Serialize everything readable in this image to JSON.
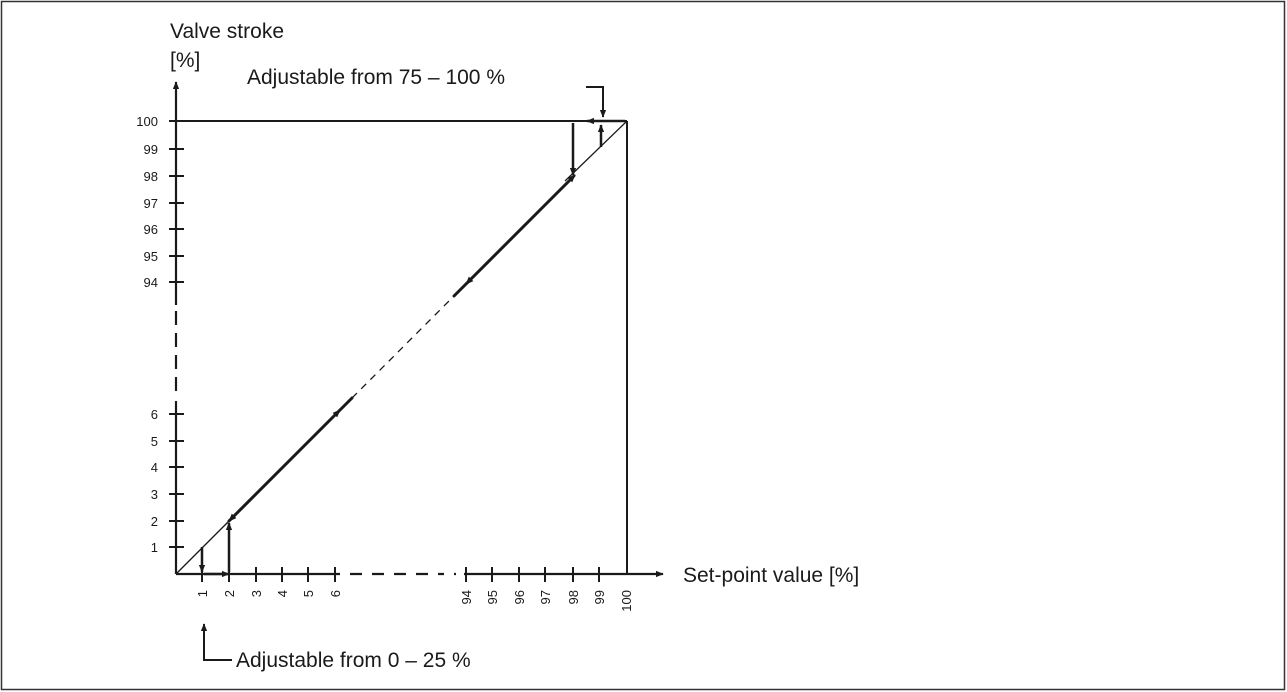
{
  "y_axis": {
    "title_line1": "Valve stroke",
    "title_line2": "[%]",
    "ticks_low": [
      "1",
      "2",
      "3",
      "4",
      "5",
      "6"
    ],
    "ticks_high": [
      "94",
      "95",
      "96",
      "97",
      "98",
      "99",
      "100"
    ]
  },
  "x_axis": {
    "title": "Set-point value [%]",
    "ticks_low": [
      "1",
      "2",
      "3",
      "4",
      "5",
      "6"
    ],
    "ticks_high": [
      "94",
      "95",
      "96",
      "97",
      "98",
      "99",
      "100"
    ]
  },
  "annotations": {
    "top": "Adjustable from 75 – 100 %",
    "bottom": "Adjustable from 0 – 25 %"
  },
  "colors": {
    "line": "#1a1a1a",
    "frame": "#333333"
  }
}
